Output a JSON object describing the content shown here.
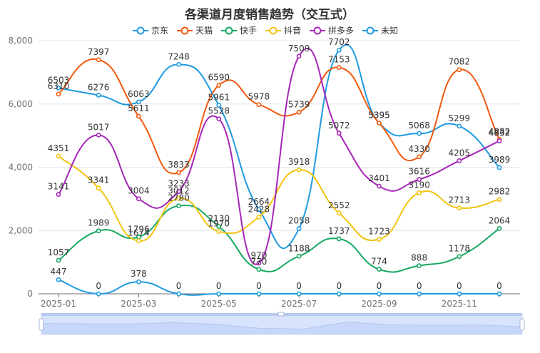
{
  "chart_data": {
    "type": "line",
    "title": "各渠道月度销售趋势（交互式）",
    "xlabel": "",
    "ylabel": "",
    "x": [
      "2025-01",
      "2025-02",
      "2025-03",
      "2025-04",
      "2025-05",
      "2025-06",
      "2025-07",
      "2025-08",
      "2025-09",
      "2025-10",
      "2025-11",
      "2025-12"
    ],
    "x_tick_labels": [
      "2025-01",
      "2025-03",
      "2025-05",
      "2025-07",
      "2025-09",
      "2025-11"
    ],
    "ylim": [
      0,
      8000
    ],
    "y_ticks": [
      0,
      2000,
      4000,
      6000,
      8000
    ],
    "y_tick_labels": [
      "0",
      "2,000",
      "4,000",
      "6,000",
      "8,000"
    ],
    "grid": true,
    "smooth": true,
    "legend_position": "top-center",
    "series": [
      {
        "name": "京东",
        "color": "#1f9ae0",
        "values": [
          6503,
          6276,
          6063,
          7248,
          5961,
          2664,
          2058,
          7702,
          5395,
          5068,
          5299,
          3989
        ]
      },
      {
        "name": "天猫",
        "color": "#f25a0e",
        "values": [
          6310,
          7397,
          5611,
          3833,
          6590,
          5978,
          5739,
          7153,
          5395,
          4330,
          7082,
          4882
        ]
      },
      {
        "name": "快手",
        "color": "#16a862",
        "values": [
          1057,
          1989,
          1796,
          2780,
          2130,
          770,
          1188,
          1737,
          774,
          888,
          1178,
          2064
        ]
      },
      {
        "name": "抖音",
        "color": "#f2c30f",
        "values": [
          4351,
          3341,
          1674,
          3012,
          1970,
          2428,
          3918,
          2552,
          1723,
          3190,
          2713,
          2982
        ]
      },
      {
        "name": "拼多多",
        "color": "#a626b8",
        "values": [
          3141,
          5017,
          3004,
          3233,
          5528,
          970,
          7509,
          5072,
          3401,
          3616,
          4205,
          4832
        ]
      },
      {
        "name": "未知",
        "color": "#1f9ae0",
        "values": [
          447,
          0,
          378,
          0,
          0,
          0,
          0,
          0,
          0,
          0,
          0,
          0
        ]
      }
    ],
    "datazoom": {
      "start": 0,
      "end": 100
    }
  }
}
